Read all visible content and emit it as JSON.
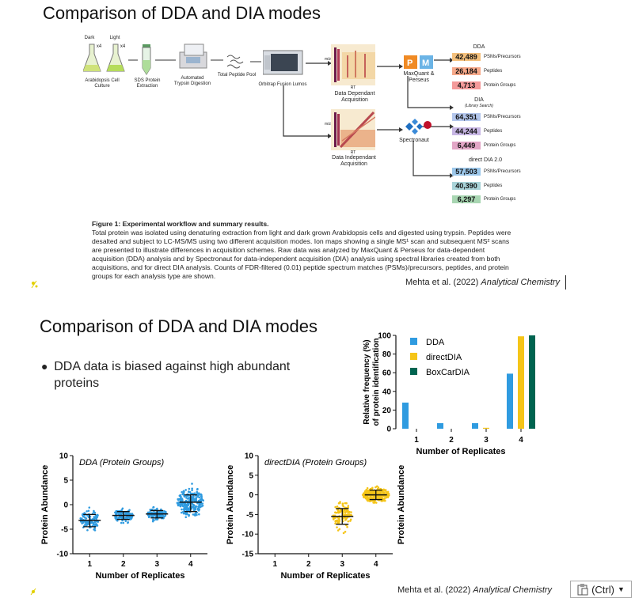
{
  "slide1": {
    "title": "Comparison of DDA and DIA modes",
    "workflow": {
      "dark": "Dark",
      "light": "Light",
      "x4a": "x4",
      "x4b": "x4",
      "arabidopsis": "Arabidopsis Cell Culture",
      "sds": "SDS Protein Extraction",
      "automated": "Automated Trypsin Digestion",
      "peptide_pool": "Total Peptide Pool",
      "orbitrap": "Orbitrap Fusion Lumos",
      "dda_acq": "Data Dependant Acquisition",
      "dia_acq": "Data Independant Acquisition",
      "rt1": "RT",
      "rt2": "RT",
      "mz1": "m/z",
      "mz2": "m/z",
      "maxquant": "MaxQuant & Perseus",
      "spectronaut": "Spectronaut"
    },
    "dda": {
      "heading": "DDA",
      "rows": [
        {
          "value": "42,489",
          "label": "PSMs/Precursors"
        },
        {
          "value": "26,184",
          "label": "Peptides"
        },
        {
          "value": "4,713",
          "label": "Protein Groups"
        }
      ]
    },
    "dia": {
      "heading": "DIA",
      "subheading": "(Library Search)",
      "rows": [
        {
          "value": "64,351",
          "label": "PSMs/Precursors"
        },
        {
          "value": "44,244",
          "label": "Peptides"
        },
        {
          "value": "6,449",
          "label": "Protein Groups"
        }
      ]
    },
    "direct": {
      "heading": "direct DIA 2.0",
      "rows": [
        {
          "value": "57,503",
          "label": "PSMs/Precursors"
        },
        {
          "value": "40,390",
          "label": "Peptides"
        },
        {
          "value": "6,297",
          "label": "Protein Groups"
        }
      ]
    },
    "caption_title": "Figure 1: Experimental workflow and summary results.",
    "caption_body": "Total protein was isolated using denaturing extraction from light and dark grown Arabidopsis cells and digested using trypsin. Peptides were desalted and subject to LC-MS/MS using two different acquisition modes. Ion maps showing a single MS¹ scan and subsequent MS² scans are presented to illustrate differences in acquisition schemes. Raw data was analyzed by MaxQuant & Perseus for data-dependent acquisition (DDA) analysis and by Spectronaut for data-independent acquisition (DIA) analysis using spectral libraries created from both acquisitions, and for direct DIA analysis. Counts of FDR-filtered (0.01) peptide spectrum matches (PSMs)/precursors, peptides, and protein groups for each analysis type are shown.",
    "credit_author": "Mehta et al. (2022)",
    "credit_journal": "Analytical Chemistry"
  },
  "slide2": {
    "title": "Comparison of DDA and DIA modes",
    "bullet": "DDA data is biased against high abundant proteins",
    "credit_author": "Mehta et al. (2022)",
    "credit_journal": "Analytical Chemistry"
  },
  "ctrl_label": "(Ctrl)",
  "chart_data": [
    {
      "type": "bar",
      "title": "",
      "xlabel": "Number of Replicates",
      "ylabel": "Relative frequency (%) of protein identification",
      "categories": [
        "1",
        "2",
        "3",
        "4"
      ],
      "ylim": [
        0,
        100
      ],
      "yticks": [
        "0",
        "20",
        "40",
        "60",
        "80",
        "100"
      ],
      "legend_position": "top-left",
      "series": [
        {
          "name": "DDA",
          "color": "#2f9be0",
          "values": [
            28,
            6,
            6,
            59
          ]
        },
        {
          "name": "directDIA",
          "color": "#f5c518",
          "values": [
            0,
            0,
            1,
            99
          ]
        },
        {
          "name": "BoxCarDIA",
          "color": "#006450",
          "values": [
            0,
            0,
            0,
            100
          ]
        }
      ]
    },
    {
      "type": "scatter",
      "title": "DDA (Protein Groups)",
      "xlabel": "Number of Replicates",
      "ylabel": "Protein Abundance",
      "categories": [
        "1",
        "2",
        "3",
        "4"
      ],
      "ylim": [
        -10,
        10
      ],
      "yticks": [
        "10",
        "5",
        "0",
        "-5",
        "-10"
      ],
      "color": "#2f9be0",
      "groups": [
        {
          "x": "1",
          "mean": -3.2,
          "sd_low": -4.5,
          "sd_high": -2.0
        },
        {
          "x": "2",
          "mean": -2.2,
          "sd_low": -3.0,
          "sd_high": -1.4
        },
        {
          "x": "3",
          "mean": -1.9,
          "sd_low": -2.7,
          "sd_high": -1.2
        },
        {
          "x": "4",
          "mean": 0.5,
          "sd_low": -1.4,
          "sd_high": 2.0
        }
      ]
    },
    {
      "type": "scatter",
      "title": "directDIA (Protein Groups)",
      "xlabel": "Number of Replicates",
      "ylabel": "Protein Abundance",
      "categories": [
        "1",
        "2",
        "3",
        "4"
      ],
      "ylim": [
        -15,
        10
      ],
      "yticks": [
        "10",
        "5",
        "0",
        "-5",
        "-10",
        "-15"
      ],
      "color": "#f5c518",
      "groups": [
        {
          "x": "3",
          "mean": -5.5,
          "sd_low": -7.5,
          "sd_high": -3.5
        },
        {
          "x": "4",
          "mean": 0.0,
          "sd_low": -1.2,
          "sd_high": 1.2
        }
      ]
    }
  ]
}
